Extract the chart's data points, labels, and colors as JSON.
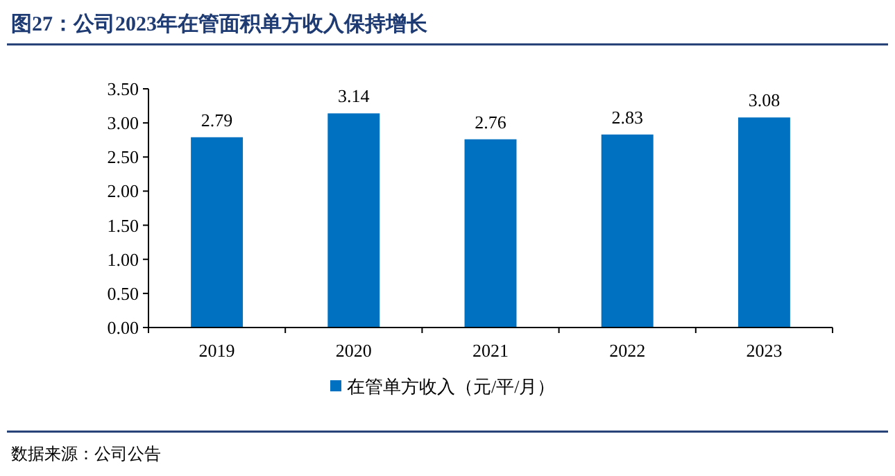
{
  "chart_data": {
    "type": "bar",
    "title": "图27：公司2023年在管面积单方收入保持增长",
    "categories": [
      "2019",
      "2020",
      "2021",
      "2022",
      "2023"
    ],
    "series": [
      {
        "name": "在管单方收入（元/平/月）",
        "color": "#0070c0",
        "values": [
          2.79,
          3.14,
          2.76,
          2.83,
          3.08
        ]
      }
    ],
    "ylim": [
      0,
      3.5
    ],
    "yticks": [
      {
        "value": 0,
        "label": "0.00"
      },
      {
        "value": 0.5,
        "label": "0.50"
      },
      {
        "value": 1,
        "label": "1.00"
      },
      {
        "value": 1.5,
        "label": "1.50"
      },
      {
        "value": 2,
        "label": "2.00"
      },
      {
        "value": 2.5,
        "label": "2.50"
      },
      {
        "value": 3,
        "label": "3.00"
      },
      {
        "value": 3.5,
        "label": "3.50"
      }
    ],
    "data_labels": true,
    "grid": false,
    "legend": "bottom",
    "annotations": [
      "数据来源：公司公告"
    ]
  }
}
